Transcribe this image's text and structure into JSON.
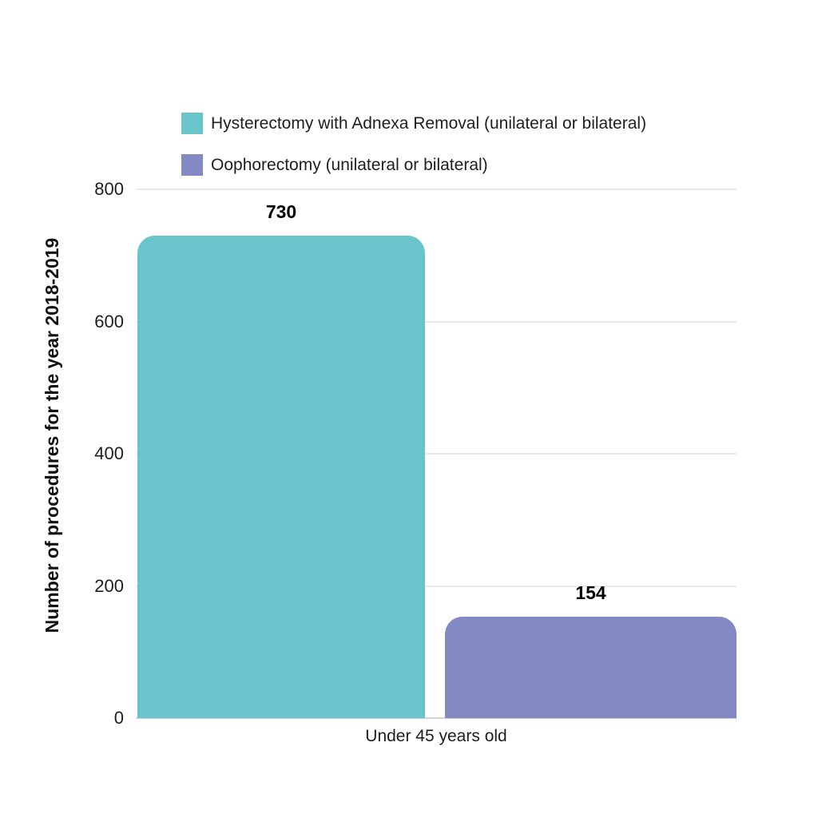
{
  "colors": {
    "series1": "#69c5cb",
    "series2": "#8289c4",
    "grid": "#e9e9e9",
    "baseline": "#d5d5d5",
    "text": "#1e1e1e",
    "value_label": "#000000"
  },
  "chart_data": {
    "type": "bar",
    "title": "",
    "categories": [
      "Under 45 years old"
    ],
    "series": [
      {
        "name": "Hysterectomy with Adnexa Removal (unilateral or bilateral)",
        "values": [
          730
        ],
        "color": "#69c5cb"
      },
      {
        "name": "Oophorectomy (unilateral or bilateral)",
        "values": [
          154
        ],
        "color": "#8289c4"
      }
    ],
    "data_labels": [
      "730",
      "154"
    ],
    "xlabel": "",
    "ylabel": "Number of procedures for the year 2018-2019",
    "ylim": [
      0,
      800
    ],
    "yticks": [
      "0",
      "200",
      "400",
      "600",
      "800"
    ],
    "grid": true,
    "legend_position": "top-left"
  }
}
